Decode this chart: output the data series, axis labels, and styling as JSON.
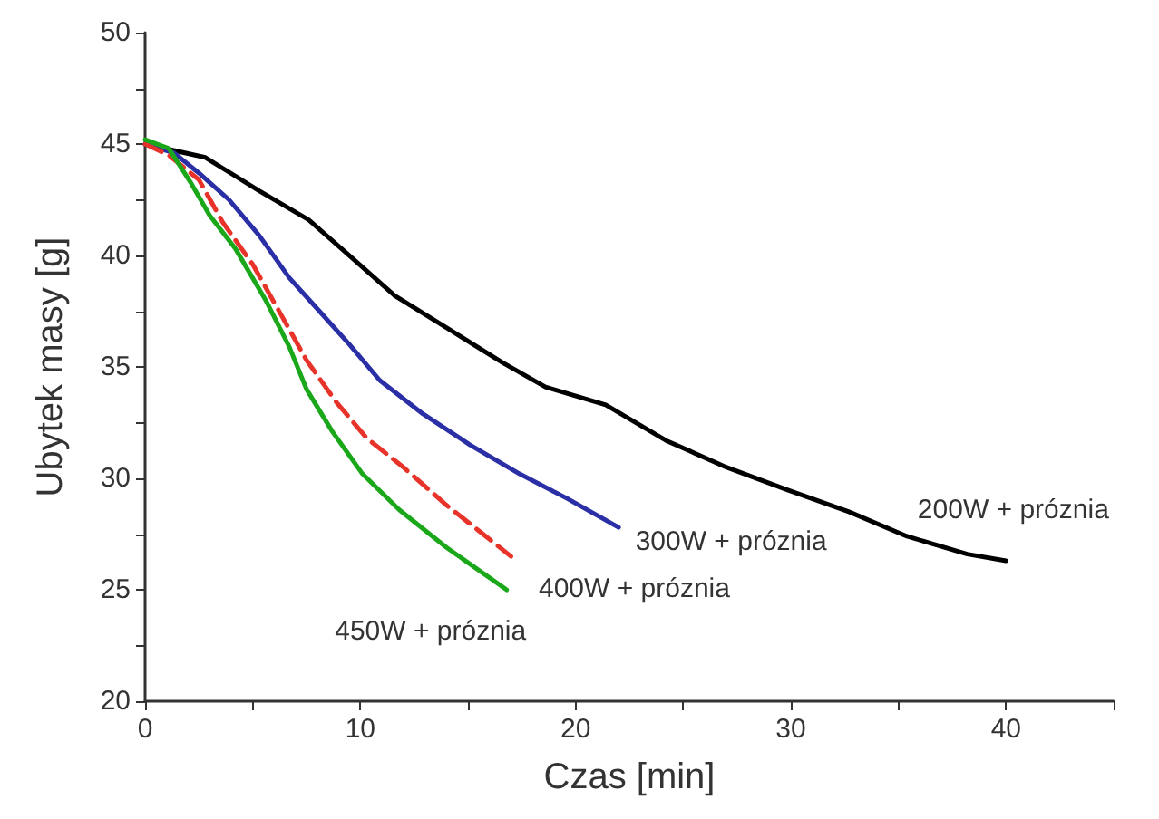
{
  "chart_data": {
    "type": "line",
    "xlabel": "Czas [min]",
    "ylabel": "Ubytek masy [g]",
    "xlim": [
      0,
      45
    ],
    "xticks": [
      0,
      {
        "value": 5,
        "label": null
      },
      10,
      {
        "value": 15,
        "label": null
      },
      20,
      {
        "value": 25,
        "label": null
      },
      30,
      {
        "value": 35,
        "label": null
      },
      40,
      {
        "value": 45,
        "label": null
      }
    ],
    "ylim": [
      20,
      50
    ],
    "yticks": [
      20,
      {
        "value": 22.5,
        "label": null
      },
      25,
      {
        "value": 27.5,
        "label": null
      },
      30,
      {
        "value": 32.5,
        "label": null
      },
      35,
      {
        "value": 37.5,
        "label": null
      },
      40,
      {
        "value": 42.5,
        "label": null
      },
      45,
      {
        "value": 47.5,
        "label": null
      },
      50
    ],
    "grid": false,
    "marker": "none",
    "series": [
      {
        "name": "200W + próznia",
        "color": "#000000",
        "line_style": "solid",
        "x": [
          0,
          2.8,
          5.3,
          7.6,
          9.6,
          11.6,
          14.1,
          16.6,
          18.6,
          21.4,
          24.2,
          27.0,
          29.8,
          32.7,
          35.4,
          38.2,
          40
        ],
        "values": [
          45,
          44.4,
          42.9,
          41.6,
          39.9,
          38.2,
          36.7,
          35.2,
          34.1,
          33.3,
          31.7,
          30.5,
          29.5,
          28.5,
          27.4,
          26.6,
          26.3
        ]
      },
      {
        "name": "300W + próznia",
        "color": "#2b2fa6",
        "line_style": "solid",
        "x": [
          0,
          1.35,
          2.5,
          3.9,
          5.3,
          6.7,
          8.1,
          9.5,
          10.9,
          12.9,
          15.1,
          17.4,
          19.6,
          22.0
        ],
        "values": [
          45,
          44.6,
          43.7,
          42.5,
          40.9,
          39.0,
          37.5,
          36.0,
          34.4,
          32.9,
          31.5,
          30.2,
          29.1,
          27.8
        ]
      },
      {
        "name": "400W + próznia",
        "color": "#e8332a",
        "line_style": "dashed",
        "x": [
          0,
          1.1,
          2.5,
          3.6,
          5.0,
          6.4,
          7.5,
          8.9,
          10.3,
          12.0,
          14.0,
          15.7,
          17.0
        ],
        "values": [
          45,
          44.5,
          43.4,
          41.5,
          39.6,
          37.2,
          35.3,
          33.4,
          31.8,
          30.5,
          28.8,
          27.5,
          26.5
        ]
      },
      {
        "name": "450W + próznia",
        "color": "#1aa81a",
        "line_style": "solid",
        "x": [
          0,
          1.1,
          2.1,
          3.0,
          4.2,
          5.6,
          6.7,
          7.5,
          8.7,
          10.1,
          11.8,
          14.0,
          16.8
        ],
        "values": [
          45.2,
          44.8,
          43.3,
          41.8,
          40.3,
          38.0,
          35.9,
          34.0,
          32.1,
          30.2,
          28.6,
          26.9,
          25.0
        ]
      }
    ]
  }
}
